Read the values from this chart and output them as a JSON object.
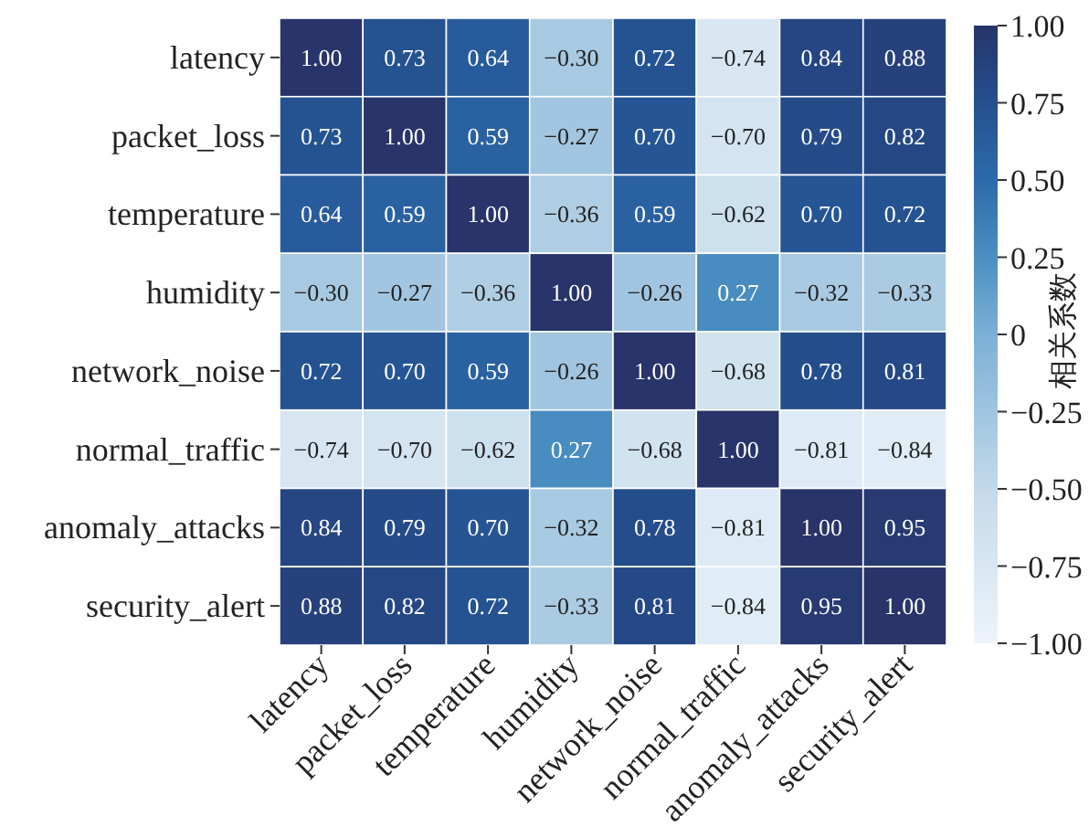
{
  "chart_data": {
    "type": "heatmap",
    "clabel": "相关系数",
    "categories": [
      "latency",
      "packet_loss",
      "temperature",
      "humidity",
      "network_noise",
      "normal_traffic",
      "anomaly_attacks",
      "security_alert"
    ],
    "y_categories": [
      "latency",
      "packet_loss",
      "temperature",
      "humidity",
      "network_noise",
      "normal_traffic",
      "anomaly_attacks",
      "security_alert"
    ],
    "cells": [
      [
        1.0,
        0.73,
        0.64,
        -0.3,
        0.72,
        -0.74,
        0.84,
        0.88
      ],
      [
        0.73,
        1.0,
        0.59,
        -0.27,
        0.7,
        -0.7,
        0.79,
        0.82
      ],
      [
        0.64,
        0.59,
        1.0,
        -0.36,
        0.59,
        -0.62,
        0.7,
        0.72
      ],
      [
        -0.3,
        -0.27,
        -0.36,
        1.0,
        -0.26,
        0.27,
        -0.32,
        -0.33
      ],
      [
        0.72,
        0.7,
        0.59,
        -0.26,
        1.0,
        -0.68,
        0.78,
        0.81
      ],
      [
        -0.74,
        -0.7,
        -0.62,
        0.27,
        -0.68,
        1.0,
        -0.81,
        -0.84
      ],
      [
        0.84,
        0.79,
        0.7,
        -0.32,
        0.78,
        -0.81,
        1.0,
        0.95
      ],
      [
        0.88,
        0.82,
        0.72,
        -0.33,
        0.81,
        -0.84,
        0.95,
        1.0
      ]
    ],
    "cell_labels": [
      [
        "1.00",
        "0.73",
        "0.64",
        "−0.30",
        "0.72",
        "−0.74",
        "0.84",
        "0.88"
      ],
      [
        "0.73",
        "1.00",
        "0.59",
        "−0.27",
        "0.70",
        "−0.70",
        "0.79",
        "0.82"
      ],
      [
        "0.64",
        "0.59",
        "1.00",
        "−0.36",
        "0.59",
        "−0.62",
        "0.70",
        "0.72"
      ],
      [
        "−0.30",
        "−0.27",
        "−0.36",
        "1.00",
        "−0.26",
        "0.27",
        "−0.32",
        "−0.33"
      ],
      [
        "0.72",
        "0.70",
        "0.59",
        "−0.26",
        "1.00",
        "−0.68",
        "0.78",
        "0.81"
      ],
      [
        "−0.74",
        "−0.70",
        "−0.62",
        "0.27",
        "−0.68",
        "1.00",
        "−0.81",
        "−0.84"
      ],
      [
        "0.84",
        "0.79",
        "0.70",
        "−0.32",
        "0.78",
        "−0.81",
        "1.00",
        "0.95"
      ],
      [
        "0.88",
        "0.82",
        "0.72",
        "−0.33",
        "0.81",
        "−0.84",
        "0.95",
        "1.00"
      ]
    ],
    "clim": [
      -1,
      1
    ],
    "cticks": [
      {
        "value": -1,
        "label": "−1.00"
      },
      {
        "value": -0.75,
        "label": "−0.75"
      },
      {
        "value": -0.5,
        "label": "−0.50"
      },
      {
        "value": -0.25,
        "label": "−0.25"
      },
      0,
      {
        "value": 0.25,
        "label": "0.25"
      },
      {
        "value": 0.5,
        "label": "0.50"
      },
      {
        "value": 0.75,
        "label": "0.75"
      },
      {
        "value": 1,
        "label": "1.00"
      }
    ]
  }
}
